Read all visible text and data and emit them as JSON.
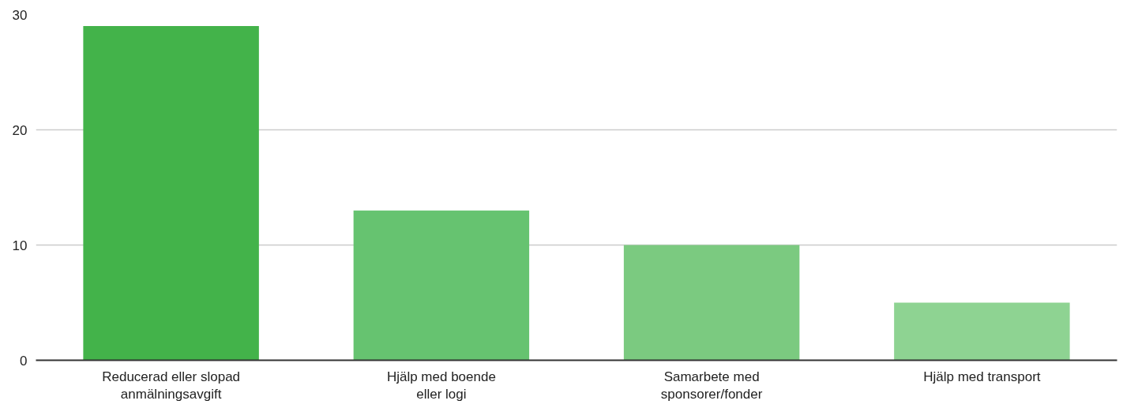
{
  "chart_data": {
    "type": "bar",
    "categories": [
      "Reducerad eller slopad\nanmälningsavgift",
      "Hjälp med boende\neller logi",
      "Samarbete med\nsponsorer/fonder",
      "Hjälp med transport"
    ],
    "values": [
      29,
      13,
      10,
      5
    ],
    "colors": [
      "#43b34a",
      "#66c370",
      "#7bca80",
      "#8ed392"
    ],
    "ylim": [
      0,
      30
    ],
    "yticks": [
      0,
      10,
      20,
      30
    ],
    "grid": "y"
  }
}
